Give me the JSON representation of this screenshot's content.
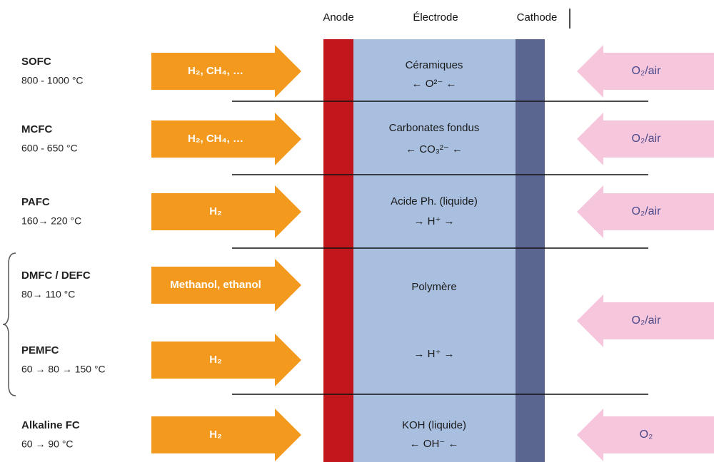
{
  "header": {
    "anode": "Anode",
    "electrode": "Électrode",
    "cathode": "Cathode"
  },
  "rows": [
    {
      "name": "SOFC",
      "temperature": "800 - 1000 °C",
      "fuel": "H₂, CH₄, …"
    },
    {
      "name": "MCFC",
      "temperature": "600 - 650 °C",
      "fuel": "H₂, CH₄, …"
    },
    {
      "name": "PAFC",
      "temperature": "160→ 220 °C",
      "fuel": "H₂"
    },
    {
      "name": "DMFC / DEFC",
      "temperature": "80→ 110 °C",
      "fuel": "Methanol, ethanol"
    },
    {
      "name": "PEMFC",
      "temperature": "60 → 80 → 150 °C",
      "fuel": "H₂"
    },
    {
      "name": "Alkaline FC",
      "temperature": "60 → 90 °C",
      "fuel": "H₂"
    }
  ],
  "electrolytes": [
    {
      "material": "Céramiques",
      "ion": "← O²⁻ ←"
    },
    {
      "material": "Carbonates fondus",
      "ion": "← CO₃²⁻ ←"
    },
    {
      "material": "Acide Ph. (liquide)",
      "ion": "→ H⁺ →"
    },
    {
      "material": "Polymère",
      "ion": "→ H⁺ →"
    },
    {
      "material": "KOH (liquide)",
      "ion": "← OH⁻ ←"
    }
  ],
  "oxidants": [
    "O₂/air",
    "O₂/air",
    "O₂/air",
    "O₂/air",
    "O₂"
  ]
}
